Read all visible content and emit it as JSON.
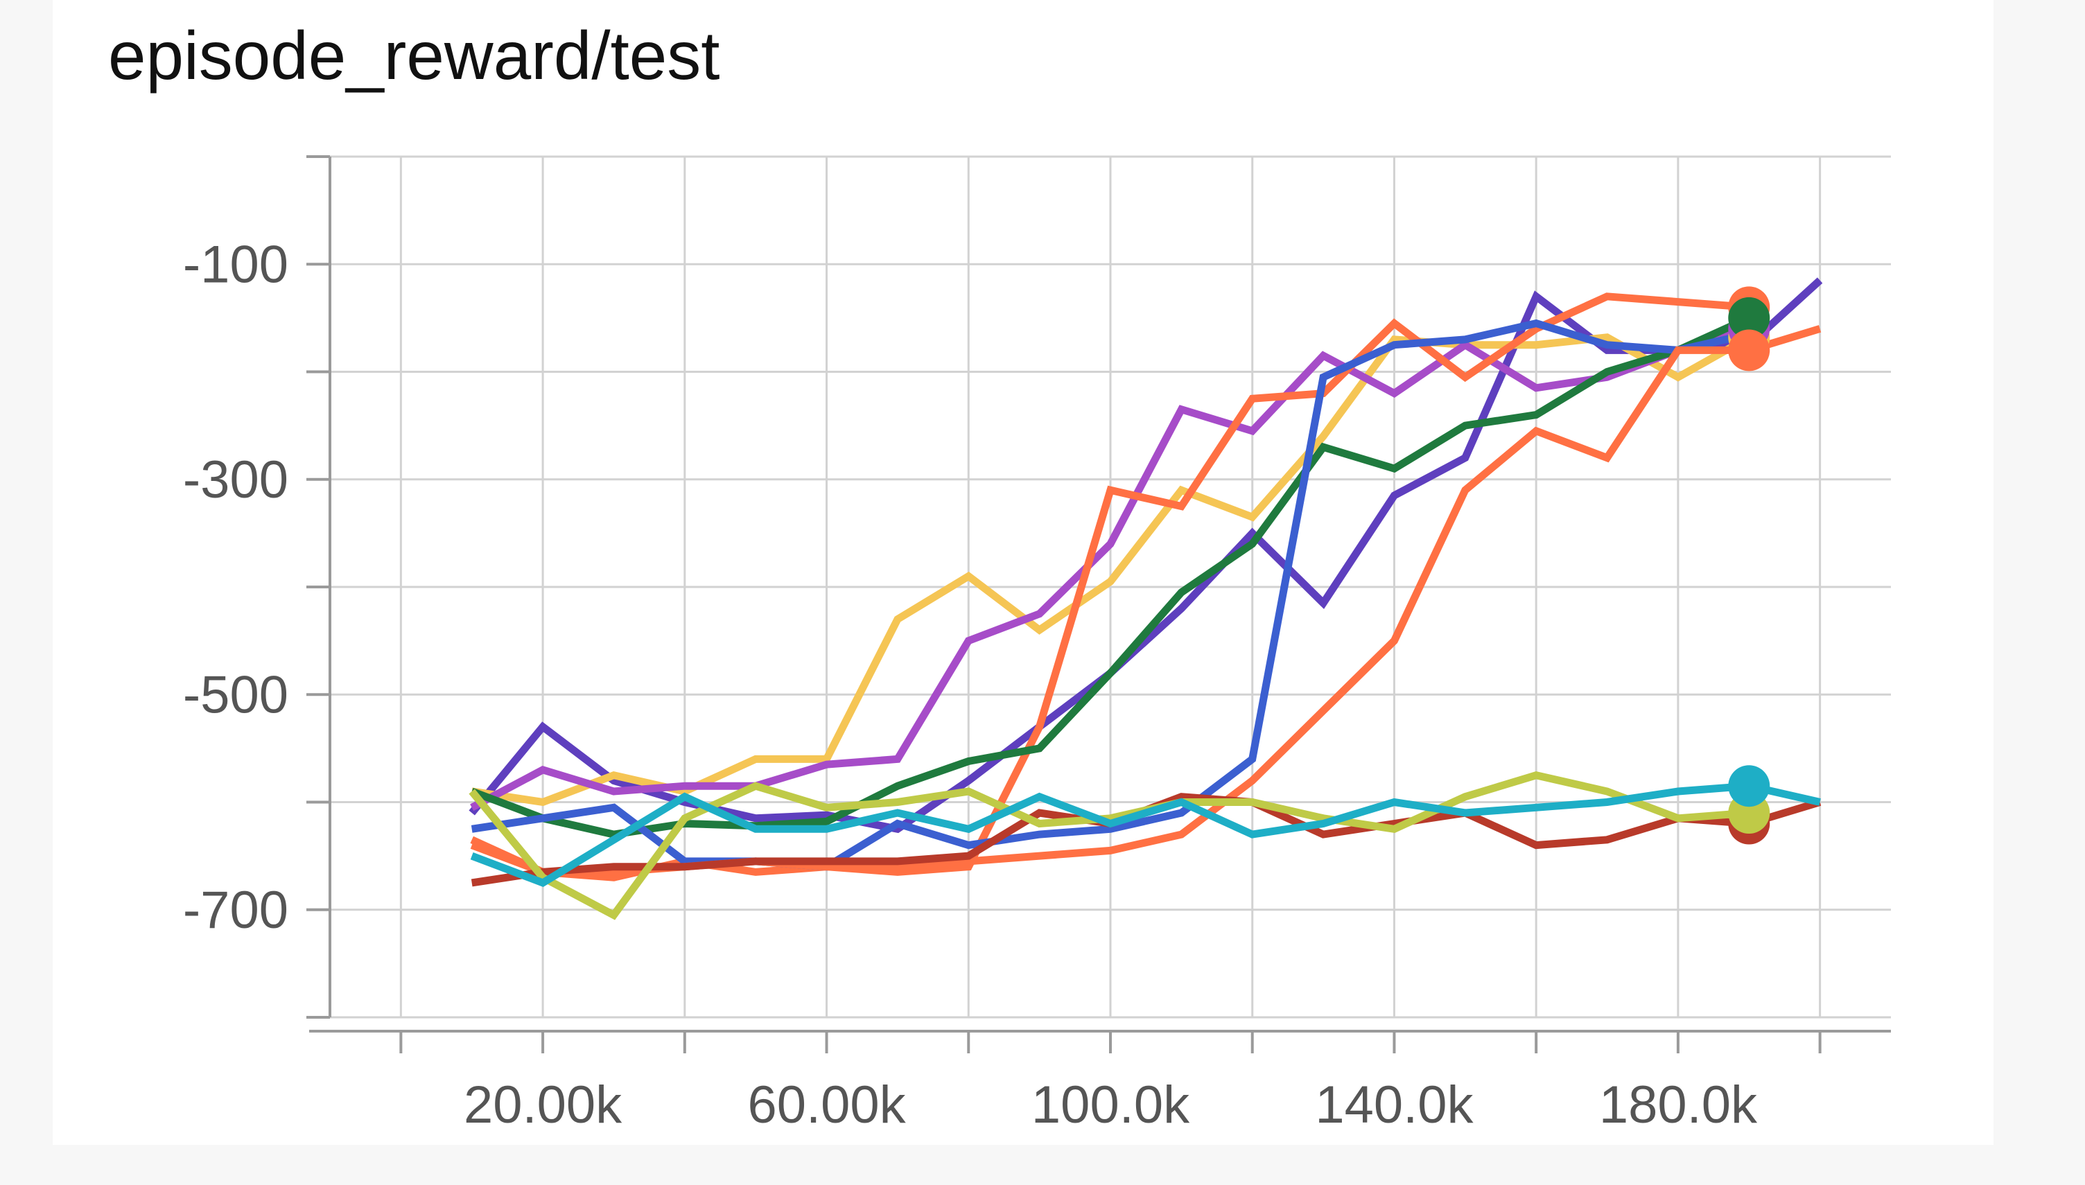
{
  "chart_data": {
    "type": "line",
    "title": "episode_reward/test",
    "xlabel": "",
    "ylabel": "",
    "xlim": [
      -10000,
      210000
    ],
    "ylim": [
      -800,
      0
    ],
    "x_ticks": [
      20000,
      60000,
      100000,
      140000,
      180000
    ],
    "x_tick_labels": [
      "20.00k",
      "60.00k",
      "100.0k",
      "140.0k",
      "180.0k"
    ],
    "y_ticks": [
      -100,
      -300,
      -500,
      -700
    ],
    "y_tick_labels": [
      "-100",
      "-300",
      "-500",
      "-700"
    ],
    "grid": true,
    "x_grid_step": 20000,
    "y_grid_step": 100,
    "legend": "none",
    "series": [
      {
        "color": "#5e3fbe",
        "x": [
          10000,
          20000,
          30000,
          40000,
          50000,
          60000,
          70000,
          80000,
          90000,
          100000,
          110000,
          120000,
          130000,
          140000,
          150000,
          160000,
          170000,
          180000,
          190000,
          200000
        ],
        "values": [
          -610,
          -530,
          -580,
          -600,
          -615,
          -612,
          -625,
          -580,
          -530,
          -480,
          -420,
          -350,
          -415,
          -315,
          -280,
          -130,
          -180,
          -180,
          -175,
          -115
        ],
        "end_marker": false
      },
      {
        "color": "#f5c554",
        "x": [
          10000,
          20000,
          30000,
          40000,
          50000,
          60000,
          70000,
          80000,
          90000,
          100000,
          110000,
          120000,
          130000,
          140000,
          150000,
          160000,
          170000,
          180000,
          190000
        ],
        "values": [
          -590,
          -600,
          -575,
          -590,
          -560,
          -560,
          -430,
          -390,
          -440,
          -395,
          -310,
          -335,
          -260,
          -170,
          -175,
          -175,
          -168,
          -205,
          -168
        ],
        "end_marker": true
      },
      {
        "color": "#a64cc8",
        "x": [
          10000,
          20000,
          30000,
          40000,
          50000,
          60000,
          70000,
          80000,
          90000,
          100000,
          110000,
          120000,
          130000,
          140000,
          150000,
          160000,
          170000,
          180000,
          190000
        ],
        "values": [
          -605,
          -570,
          -590,
          -585,
          -585,
          -565,
          -560,
          -450,
          -425,
          -360,
          -235,
          -255,
          -185,
          -220,
          -175,
          -215,
          -205,
          -180,
          -160
        ],
        "end_marker": true
      },
      {
        "color": "#ff7043",
        "x": [
          10000,
          20000,
          30000,
          40000,
          50000,
          60000,
          70000,
          80000,
          90000,
          100000,
          110000,
          120000,
          130000,
          140000,
          150000,
          160000,
          170000,
          180000,
          190000
        ],
        "values": [
          -640,
          -665,
          -670,
          -655,
          -665,
          -660,
          -665,
          -660,
          -530,
          -310,
          -325,
          -225,
          -220,
          -155,
          -205,
          -160,
          -130,
          -135,
          -140
        ],
        "end_marker": true
      },
      {
        "color": "#1f7a3e",
        "x": [
          10000,
          20000,
          30000,
          40000,
          50000,
          60000,
          70000,
          80000,
          90000,
          100000,
          110000,
          120000,
          130000,
          140000,
          150000,
          160000,
          170000,
          180000,
          190000
        ],
        "values": [
          -590,
          -615,
          -630,
          -620,
          -622,
          -618,
          -585,
          -562,
          -550,
          -480,
          -405,
          -360,
          -270,
          -290,
          -250,
          -240,
          -200,
          -180,
          -150
        ],
        "end_marker": true
      },
      {
        "color": "#3b5fd0",
        "x": [
          10000,
          20000,
          30000,
          40000,
          50000,
          60000,
          70000,
          80000,
          90000,
          100000,
          110000,
          120000,
          130000,
          140000,
          150000,
          160000,
          170000,
          180000,
          190000
        ],
        "values": [
          -625,
          -615,
          -605,
          -655,
          -655,
          -660,
          -620,
          -640,
          -630,
          -625,
          -610,
          -560,
          -205,
          -175,
          -170,
          -155,
          -175,
          -180,
          -165
        ],
        "end_marker": false
      },
      {
        "color": "#ff7043",
        "x": [
          10000,
          20000,
          30000,
          40000,
          50000,
          60000,
          70000,
          80000,
          90000,
          100000,
          110000,
          120000,
          130000,
          140000,
          150000,
          160000,
          170000,
          180000,
          190000,
          200000
        ],
        "values": [
          -635,
          -665,
          -665,
          -660,
          -655,
          -660,
          -660,
          -655,
          -650,
          -645,
          -630,
          -580,
          -515,
          -450,
          -310,
          -255,
          -280,
          -180,
          -180,
          -160
        ],
        "end_marker": true
      },
      {
        "color": "#b83a2a",
        "x": [
          10000,
          20000,
          30000,
          40000,
          50000,
          60000,
          70000,
          80000,
          90000,
          100000,
          110000,
          120000,
          130000,
          140000,
          150000,
          160000,
          170000,
          180000,
          190000,
          200000
        ],
        "values": [
          -675,
          -665,
          -660,
          -660,
          -655,
          -655,
          -655,
          -650,
          -610,
          -620,
          -595,
          -600,
          -630,
          -620,
          -610,
          -640,
          -635,
          -615,
          -620,
          -600
        ],
        "end_marker": true
      },
      {
        "color": "#bfca47",
        "x": [
          10000,
          20000,
          30000,
          40000,
          50000,
          60000,
          70000,
          80000,
          90000,
          100000,
          110000,
          120000,
          130000,
          140000,
          150000,
          160000,
          170000,
          180000,
          190000
        ],
        "values": [
          -590,
          -670,
          -705,
          -615,
          -585,
          -605,
          -600,
          -590,
          -620,
          -615,
          -600,
          -600,
          -615,
          -625,
          -595,
          -575,
          -590,
          -615,
          -610
        ],
        "end_marker": true
      },
      {
        "color": "#1eaec6",
        "x": [
          10000,
          20000,
          30000,
          40000,
          50000,
          60000,
          70000,
          80000,
          90000,
          100000,
          110000,
          120000,
          130000,
          140000,
          150000,
          160000,
          170000,
          180000,
          190000,
          200000
        ],
        "values": [
          -650,
          -675,
          -635,
          -595,
          -625,
          -625,
          -610,
          -625,
          -595,
          -620,
          -600,
          -630,
          -620,
          -600,
          -610,
          -605,
          -600,
          -590,
          -585,
          -600
        ],
        "end_marker": true
      }
    ]
  }
}
